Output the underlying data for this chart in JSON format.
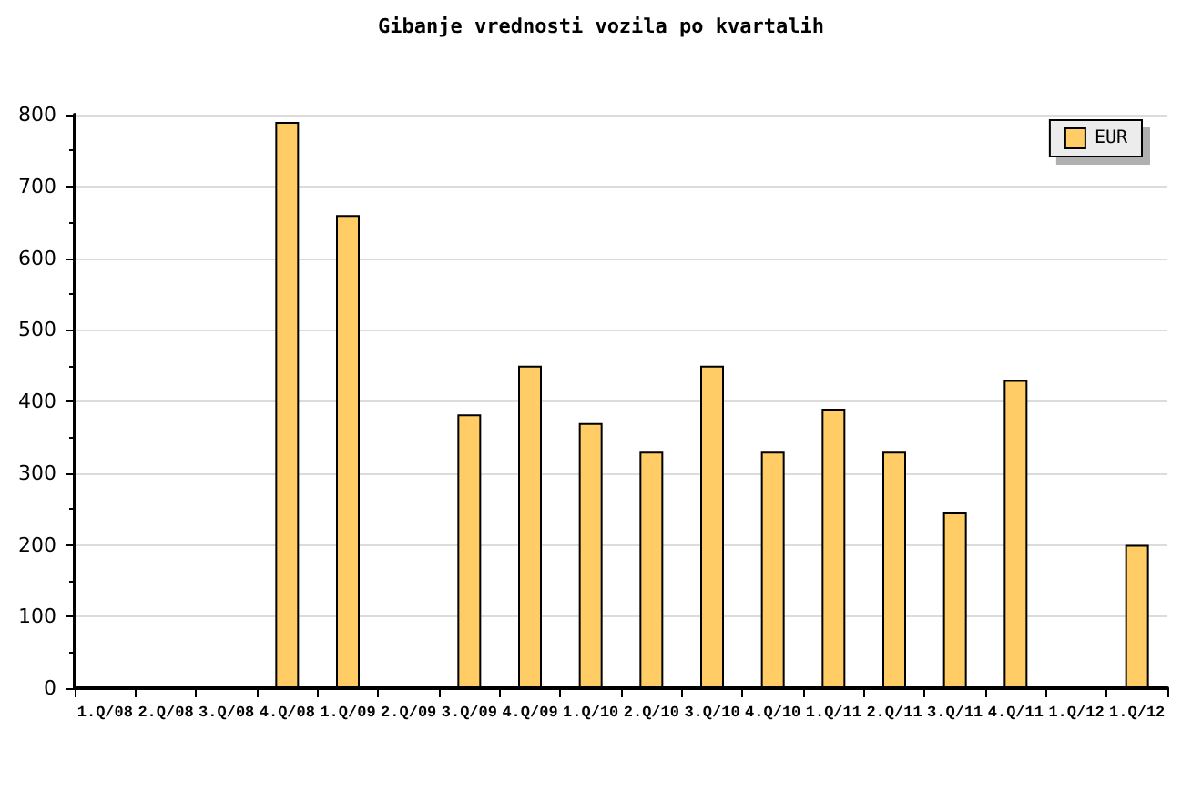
{
  "chart_data": {
    "type": "bar",
    "title": "Gibanje vrednosti vozila po kvartalih",
    "categories": [
      "1.Q/08",
      "2.Q/08",
      "3.Q/08",
      "4.Q/08",
      "1.Q/09",
      "2.Q/09",
      "3.Q/09",
      "4.Q/09",
      "1.Q/10",
      "2.Q/10",
      "3.Q/10",
      "4.Q/10",
      "1.Q/11",
      "2.Q/11",
      "3.Q/11",
      "4.Q/11",
      "1.Q/12",
      "1.Q/12"
    ],
    "series": [
      {
        "name": "EUR",
        "color": "#ffcc66",
        "values": [
          null,
          null,
          null,
          790,
          660,
          null,
          382,
          450,
          370,
          330,
          450,
          330,
          390,
          330,
          245,
          430,
          null,
          200
        ]
      }
    ],
    "ylim": [
      0,
      800
    ],
    "yticks": [
      0,
      100,
      200,
      300,
      400,
      500,
      600,
      700,
      800
    ],
    "grid": "y",
    "legend": "top right"
  }
}
